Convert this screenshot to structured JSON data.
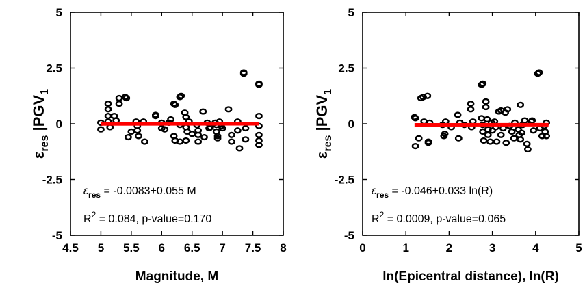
{
  "chart_data": [
    {
      "type": "scatter",
      "xlabel": "Magnitude, M",
      "ylabel": {
        "main": "ε",
        "sub": "res",
        "bar": " |PGV",
        "sub2": "1"
      },
      "xlim": [
        4.5,
        8
      ],
      "ylim": [
        -5,
        5
      ],
      "xticks": [
        4.5,
        5,
        5.5,
        6,
        6.5,
        7,
        7.5,
        8
      ],
      "xtick_labels": [
        "4.5",
        "5",
        "5.5",
        "6",
        "6.5",
        "7",
        "7.5",
        "8"
      ],
      "yticks": [
        -5,
        -2.5,
        0,
        2.5,
        5
      ],
      "ytick_labels": [
        "-5",
        "-2.5",
        "0",
        "2.5",
        "5"
      ],
      "grid": false,
      "fit_line": {
        "intercept": -0.0083,
        "slope": 0.055,
        "x_range": [
          5,
          7.6
        ],
        "color": "#ff0000"
      },
      "annotations": {
        "eq_prefix": "ε",
        "eq_sub": "res",
        "eq_rest": " = -0.0083+0.055 M",
        "r2_prefix": "R",
        "r2_sup": "2",
        "r2_rest": " = 0.084, p-value=0.170"
      },
      "points": [
        {
          "x": 5.0,
          "y": 0.05
        },
        {
          "x": 5.0,
          "y": -0.25
        },
        {
          "x": 5.12,
          "y": 0.9
        },
        {
          "x": 5.12,
          "y": 0.65
        },
        {
          "x": 5.12,
          "y": 0.35
        },
        {
          "x": 5.12,
          "y": 0.1
        },
        {
          "x": 5.15,
          "y": -0.15
        },
        {
          "x": 5.22,
          "y": 0.35
        },
        {
          "x": 5.25,
          "y": 0.15
        },
        {
          "x": 5.3,
          "y": 1.15
        },
        {
          "x": 5.3,
          "y": 0.9
        },
        {
          "x": 5.4,
          "y": 1.2
        },
        {
          "x": 5.42,
          "y": 1.15
        },
        {
          "x": 5.45,
          "y": -0.6
        },
        {
          "x": 5.5,
          "y": -0.35
        },
        {
          "x": 5.58,
          "y": 0.1
        },
        {
          "x": 5.6,
          "y": -0.1
        },
        {
          "x": 5.6,
          "y": -0.3
        },
        {
          "x": 5.62,
          "y": -0.55
        },
        {
          "x": 5.7,
          "y": 0.1
        },
        {
          "x": 5.72,
          "y": -0.8
        },
        {
          "x": 5.9,
          "y": 0.35
        },
        {
          "x": 5.9,
          "y": 0.4
        },
        {
          "x": 6.0,
          "y": 0.05
        },
        {
          "x": 6.0,
          "y": -0.2
        },
        {
          "x": 6.05,
          "y": -0.25
        },
        {
          "x": 6.12,
          "y": 0.05
        },
        {
          "x": 6.15,
          "y": 0.2
        },
        {
          "x": 6.2,
          "y": 0.9
        },
        {
          "x": 6.22,
          "y": 0.85
        },
        {
          "x": 6.2,
          "y": -0.55
        },
        {
          "x": 6.22,
          "y": -0.75
        },
        {
          "x": 6.3,
          "y": 1.2
        },
        {
          "x": 6.32,
          "y": 1.25
        },
        {
          "x": 6.3,
          "y": -0.05
        },
        {
          "x": 6.3,
          "y": -0.8
        },
        {
          "x": 6.38,
          "y": 0.5
        },
        {
          "x": 6.4,
          "y": 0.3
        },
        {
          "x": 6.4,
          "y": -0.15
        },
        {
          "x": 6.42,
          "y": -0.35
        },
        {
          "x": 6.4,
          "y": -0.75
        },
        {
          "x": 6.45,
          "y": 0.1
        },
        {
          "x": 6.5,
          "y": -0.45
        },
        {
          "x": 6.58,
          "y": -0.05
        },
        {
          "x": 6.6,
          "y": -0.3
        },
        {
          "x": 6.6,
          "y": -0.5
        },
        {
          "x": 6.6,
          "y": -0.8
        },
        {
          "x": 6.68,
          "y": 0.55
        },
        {
          "x": 6.7,
          "y": -0.6
        },
        {
          "x": 6.75,
          "y": 0.05
        },
        {
          "x": 6.78,
          "y": -0.2
        },
        {
          "x": 6.8,
          "y": -0.15
        },
        {
          "x": 6.88,
          "y": 0.05
        },
        {
          "x": 6.9,
          "y": -0.05
        },
        {
          "x": 6.9,
          "y": -0.35
        },
        {
          "x": 6.92,
          "y": -0.55
        },
        {
          "x": 6.92,
          "y": -0.65
        },
        {
          "x": 6.95,
          "y": 0.1
        },
        {
          "x": 6.98,
          "y": -0.1
        },
        {
          "x": 7.0,
          "y": -0.2
        },
        {
          "x": 7.1,
          "y": 0.65
        },
        {
          "x": 7.15,
          "y": -0.5
        },
        {
          "x": 7.15,
          "y": -0.8
        },
        {
          "x": 7.25,
          "y": 0.1
        },
        {
          "x": 7.25,
          "y": -0.3
        },
        {
          "x": 7.28,
          "y": -1.1
        },
        {
          "x": 7.35,
          "y": 2.25
        },
        {
          "x": 7.35,
          "y": 2.3
        },
        {
          "x": 7.38,
          "y": -0.2
        },
        {
          "x": 7.38,
          "y": -0.7
        },
        {
          "x": 7.6,
          "y": 1.75
        },
        {
          "x": 7.6,
          "y": 1.8
        },
        {
          "x": 7.6,
          "y": 0.35
        },
        {
          "x": 7.6,
          "y": -0.1
        },
        {
          "x": 7.6,
          "y": -0.5
        },
        {
          "x": 7.6,
          "y": -0.75
        },
        {
          "x": 7.6,
          "y": -0.95
        }
      ]
    },
    {
      "type": "scatter",
      "xlabel": "ln(Epicentral distance), ln(R)",
      "ylabel": {
        "main": "ε",
        "sub": "res",
        "bar": " |PGV",
        "sub2": "1"
      },
      "xlim": [
        0,
        5
      ],
      "ylim": [
        -5,
        5
      ],
      "xticks": [
        0,
        1,
        2,
        3,
        4,
        5
      ],
      "xtick_labels": [
        "0",
        "1",
        "2",
        "3",
        "4",
        "5"
      ],
      "yticks": [
        -5,
        -2.5,
        0,
        2.5,
        5
      ],
      "ytick_labels": [
        "-5",
        "-2.5",
        "0",
        "2.5",
        "5"
      ],
      "grid": false,
      "fit_line": {
        "intercept": -0.046,
        "slope": 0.033,
        "x_range": [
          1.2,
          4.3
        ],
        "color": "#ff0000"
      },
      "annotations": {
        "eq_prefix": "ε",
        "eq_sub": "res",
        "eq_rest": " = -0.046+0.033 ln(R)",
        "r2_prefix": "R",
        "r2_sup": "2",
        "r2_rest": " = 0.0009, p-value=0.065"
      },
      "points": [
        {
          "x": 1.2,
          "y": 0.3
        },
        {
          "x": 1.22,
          "y": 0.25
        },
        {
          "x": 1.22,
          "y": -1.0
        },
        {
          "x": 1.3,
          "y": -0.65
        },
        {
          "x": 1.35,
          "y": 1.15
        },
        {
          "x": 1.4,
          "y": 1.2
        },
        {
          "x": 1.42,
          "y": 0.1
        },
        {
          "x": 1.5,
          "y": 1.25
        },
        {
          "x": 1.52,
          "y": -0.85
        },
        {
          "x": 1.52,
          "y": -0.8
        },
        {
          "x": 1.55,
          "y": 0.05
        },
        {
          "x": 1.85,
          "y": -0.05
        },
        {
          "x": 1.88,
          "y": -0.55
        },
        {
          "x": 1.9,
          "y": -0.45
        },
        {
          "x": 1.92,
          "y": 0.1
        },
        {
          "x": 2.05,
          "y": -0.15
        },
        {
          "x": 2.2,
          "y": 0.4
        },
        {
          "x": 2.22,
          "y": -0.65
        },
        {
          "x": 2.25,
          "y": 0.05
        },
        {
          "x": 2.35,
          "y": -0.05
        },
        {
          "x": 2.5,
          "y": 0.9
        },
        {
          "x": 2.5,
          "y": 0.65
        },
        {
          "x": 2.52,
          "y": -0.15
        },
        {
          "x": 2.55,
          "y": 0.1
        },
        {
          "x": 2.75,
          "y": 1.75
        },
        {
          "x": 2.78,
          "y": 1.8
        },
        {
          "x": 2.75,
          "y": 0.25
        },
        {
          "x": 2.78,
          "y": -0.05
        },
        {
          "x": 2.78,
          "y": -0.35
        },
        {
          "x": 2.8,
          "y": -0.75
        },
        {
          "x": 2.85,
          "y": 1.0
        },
        {
          "x": 2.85,
          "y": 0.75
        },
        {
          "x": 2.88,
          "y": 0.2
        },
        {
          "x": 2.9,
          "y": -0.25
        },
        {
          "x": 2.9,
          "y": -0.5
        },
        {
          "x": 2.95,
          "y": -0.8
        },
        {
          "x": 2.98,
          "y": 0.05
        },
        {
          "x": 3.0,
          "y": -0.3
        },
        {
          "x": 3.05,
          "y": 0.1
        },
        {
          "x": 3.08,
          "y": -0.15
        },
        {
          "x": 3.1,
          "y": -0.8
        },
        {
          "x": 3.15,
          "y": 0.55
        },
        {
          "x": 3.2,
          "y": 0.6
        },
        {
          "x": 3.2,
          "y": -0.5
        },
        {
          "x": 3.25,
          "y": -0.2
        },
        {
          "x": 3.3,
          "y": 0.5
        },
        {
          "x": 3.32,
          "y": -0.85
        },
        {
          "x": 3.35,
          "y": 0.65
        },
        {
          "x": 3.4,
          "y": -0.1
        },
        {
          "x": 3.45,
          "y": -0.35
        },
        {
          "x": 3.5,
          "y": -0.65
        },
        {
          "x": 3.52,
          "y": 0.05
        },
        {
          "x": 3.6,
          "y": -0.25
        },
        {
          "x": 3.62,
          "y": -0.5
        },
        {
          "x": 3.65,
          "y": 0.85
        },
        {
          "x": 3.65,
          "y": -0.7
        },
        {
          "x": 3.68,
          "y": -0.4
        },
        {
          "x": 3.7,
          "y": -0.05
        },
        {
          "x": 3.75,
          "y": 0.15
        },
        {
          "x": 3.8,
          "y": -0.9
        },
        {
          "x": 3.82,
          "y": -1.15
        },
        {
          "x": 3.9,
          "y": 0.1
        },
        {
          "x": 3.92,
          "y": 0.15
        },
        {
          "x": 3.95,
          "y": -0.3
        },
        {
          "x": 4.05,
          "y": 2.25
        },
        {
          "x": 4.08,
          "y": 2.3
        },
        {
          "x": 4.1,
          "y": -0.2
        },
        {
          "x": 4.15,
          "y": -0.55
        },
        {
          "x": 4.2,
          "y": -0.1
        },
        {
          "x": 4.22,
          "y": -0.35
        },
        {
          "x": 4.25,
          "y": -0.55
        },
        {
          "x": 4.25,
          "y": 0.05
        }
      ]
    }
  ]
}
